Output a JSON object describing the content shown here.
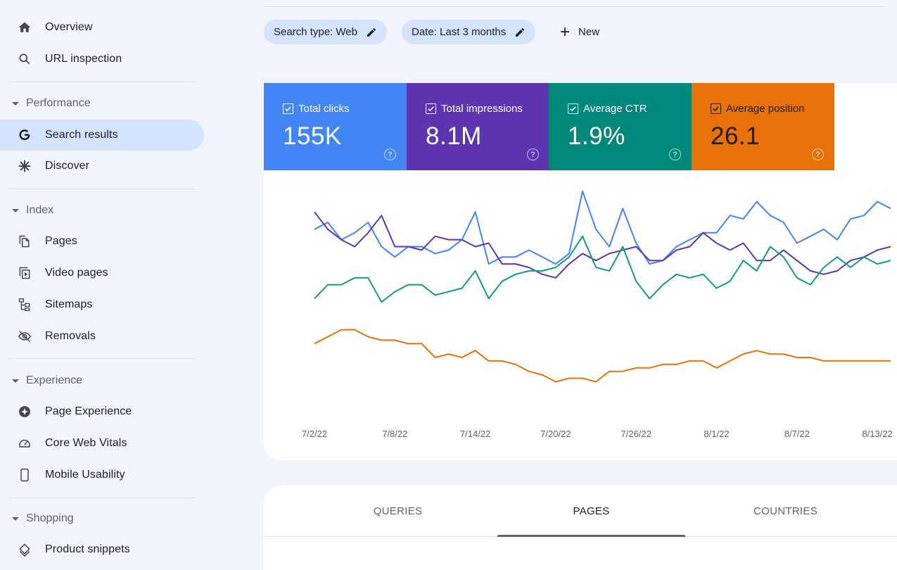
{
  "sidebar": {
    "overview": "Overview",
    "url_inspection": "URL inspection",
    "sections": {
      "performance": "Performance",
      "index": "Index",
      "experience": "Experience",
      "shopping": "Shopping"
    },
    "search_results": "Search results",
    "discover": "Discover",
    "pages": "Pages",
    "video_pages": "Video pages",
    "sitemaps": "Sitemaps",
    "removals": "Removals",
    "page_experience": "Page Experience",
    "core_web_vitals": "Core Web Vitals",
    "mobile_usability": "Mobile Usability",
    "product_snippets": "Product snippets"
  },
  "filters": {
    "search_type": "Search type: Web",
    "date": "Date: Last 3 months",
    "new_label": "New"
  },
  "metrics": [
    {
      "label": "Total clicks",
      "value": "155K",
      "color": "#4285f4"
    },
    {
      "label": "Total impressions",
      "value": "8.1M",
      "color": "#5e35b1"
    },
    {
      "label": "Average CTR",
      "value": "1.9%",
      "color": "#00897b"
    },
    {
      "label": "Average position",
      "value": "26.1",
      "color": "#e8710a"
    }
  ],
  "tabs": {
    "queries": "QUERIES",
    "pages": "PAGES",
    "countries": "COUNTRIES"
  },
  "chart_data": {
    "type": "line",
    "x": [
      "7/2/22",
      "7/3/22",
      "7/4/22",
      "7/5/22",
      "7/6/22",
      "7/7/22",
      "7/8/22",
      "7/9/22",
      "7/10/22",
      "7/11/22",
      "7/12/22",
      "7/13/22",
      "7/14/22",
      "7/15/22",
      "7/16/22",
      "7/17/22",
      "7/18/22",
      "7/19/22",
      "7/20/22",
      "7/21/22",
      "7/22/22",
      "7/23/22",
      "7/24/22",
      "7/25/22",
      "7/26/22",
      "7/27/22",
      "7/28/22",
      "7/29/22",
      "7/30/22",
      "7/31/22",
      "8/1/22",
      "8/2/22",
      "8/3/22",
      "8/4/22",
      "8/5/22",
      "8/6/22",
      "8/7/22",
      "8/8/22",
      "8/9/22",
      "8/10/22",
      "8/11/22",
      "8/12/22",
      "8/13/22",
      "8/14/22"
    ],
    "x_tick_labels": [
      "7/2/22",
      "7/8/22",
      "7/14/22",
      "7/20/22",
      "7/26/22",
      "8/1/22",
      "8/7/22",
      "8/13/22"
    ],
    "series": [
      {
        "color": "#4285f4",
        "values": [
          60,
          62,
          57,
          59,
          62,
          55,
          52,
          55,
          55,
          53,
          54,
          57,
          65,
          50,
          52,
          52,
          54,
          52,
          50,
          53,
          71,
          60,
          55,
          66,
          56,
          50,
          51,
          55,
          57,
          59,
          59,
          64,
          63,
          68,
          64,
          62,
          56,
          58,
          60,
          57,
          63,
          64,
          68,
          66
        ]
      },
      {
        "color": "#5e35b1",
        "values": [
          65,
          60,
          57,
          55,
          59,
          64,
          55,
          55,
          54,
          58,
          57,
          57,
          55,
          56,
          50,
          50,
          49,
          47,
          46,
          50,
          53,
          51,
          53,
          54,
          55,
          51,
          51,
          54,
          55,
          59,
          56,
          54,
          56,
          51,
          51,
          54,
          51,
          48,
          47,
          48,
          51,
          52,
          54,
          55
        ]
      },
      {
        "color": "#0f9d7f",
        "values": [
          40,
          44,
          44,
          46,
          46,
          39,
          42,
          44,
          44,
          41,
          42,
          43,
          48,
          40,
          45,
          47,
          48,
          48,
          49,
          52,
          58,
          49,
          48,
          55,
          45,
          40,
          44,
          47,
          46,
          47,
          43,
          45,
          51,
          48,
          55,
          52,
          46,
          44,
          49,
          52,
          49,
          52,
          50,
          51
        ]
      },
      {
        "color": "#e8710a",
        "values": [
          27,
          29,
          31,
          31,
          29,
          28,
          28,
          27,
          27,
          23,
          24,
          23,
          25,
          22,
          22,
          21,
          19,
          18,
          16,
          17,
          17,
          16,
          19,
          19,
          20,
          20,
          21,
          21,
          22,
          22,
          20,
          22,
          24,
          25,
          24,
          24,
          23,
          23,
          22,
          22,
          22,
          22,
          22,
          22
        ]
      }
    ]
  }
}
